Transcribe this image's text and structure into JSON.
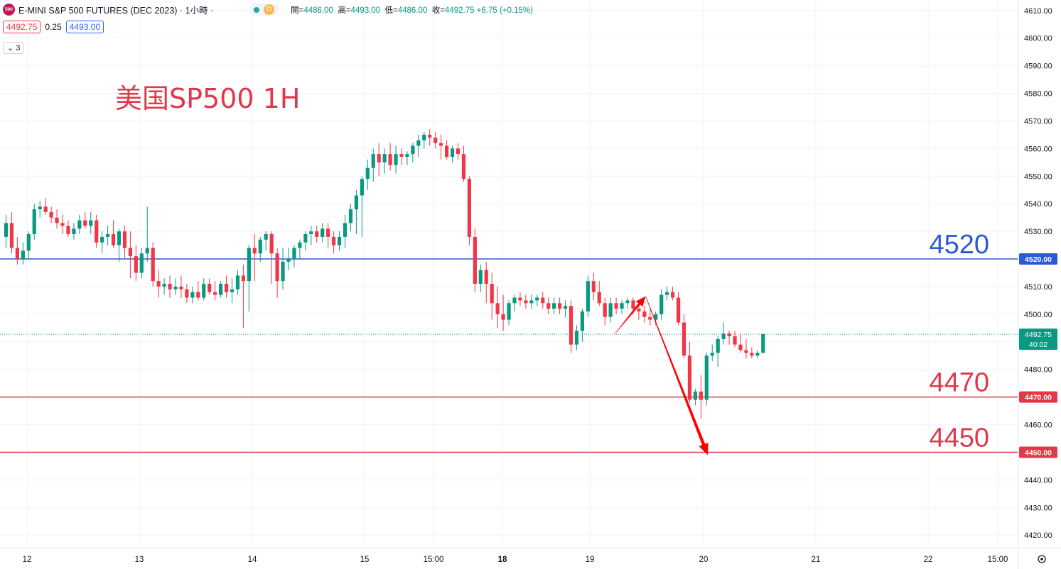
{
  "header": {
    "symbol_badge": "500",
    "symbol_title": "E-MINI S&P 500 FUTURES (DEC 2023) · 1小時 ·",
    "d_badge": "D",
    "ohlc": [
      {
        "label": "開=",
        "value": "4486.00"
      },
      {
        "label": "高=",
        "value": "4493.00"
      },
      {
        "label": "低=",
        "value": "4486.00"
      },
      {
        "label": "收=",
        "value": "4492.75 +6.75 (+0.15%)"
      }
    ],
    "sell_price": "4492.75",
    "spread": "0.25",
    "buy_price": "4493.00",
    "indicator_count": "3"
  },
  "colors": {
    "up": "#089981",
    "down": "#f23645",
    "support": "#e03a4a",
    "resistance": "#2a5bd7",
    "arrow": "#ff0000",
    "watermark": "#e0384b"
  },
  "chart_data": {
    "type": "candlestick",
    "title": "美国SP500 1H",
    "ylim": [
      4418,
      4612
    ],
    "y_ticks": [
      "4610.00",
      "4600.00",
      "4590.00",
      "4580.00",
      "4570.00",
      "4560.00",
      "4550.00",
      "4540.00",
      "4530.00",
      "4520.00",
      "4510.00",
      "4500.00",
      "4490.00",
      "4480.00",
      "4470.00",
      "4460.00",
      "4450.00",
      "4440.00",
      "4430.00",
      "4420.00"
    ],
    "x_labels": [
      "12",
      "13",
      "14",
      "15",
      "15:00",
      "18",
      "19",
      "20",
      "21",
      "22",
      "15:00"
    ],
    "last_price": "4492.75",
    "countdown": "40:02",
    "levels": [
      {
        "value": 4520,
        "label": "4520",
        "axis_label": "4520.00",
        "kind": "resistance"
      },
      {
        "value": 4470,
        "label": "4470",
        "axis_label": "4470.00",
        "kind": "support"
      },
      {
        "value": 4450,
        "label": "4450",
        "axis_label": "4450.00",
        "kind": "support"
      }
    ],
    "projection": [
      {
        "t": 107.7,
        "price": 4492.75
      },
      {
        "t": 113.2,
        "price": 4506.5
      },
      {
        "t": 124.2,
        "price": 4449
      }
    ],
    "candles": [
      [
        4528,
        4536,
        4524,
        4533
      ],
      [
        4533,
        4537,
        4522,
        4524
      ],
      [
        4524,
        4528,
        4518,
        4520
      ],
      [
        4520,
        4526,
        4518,
        4523
      ],
      [
        4523,
        4530,
        4520,
        4529
      ],
      [
        4529,
        4540,
        4527,
        4538
      ],
      [
        4538,
        4541,
        4535,
        4539
      ],
      [
        4539,
        4542,
        4536,
        4537
      ],
      [
        4537,
        4539,
        4533,
        4535
      ],
      [
        4535,
        4538,
        4531,
        4533
      ],
      [
        4533,
        4536,
        4529,
        4532
      ],
      [
        4532,
        4534,
        4528,
        4529
      ],
      [
        4529,
        4533,
        4527,
        4531
      ],
      [
        4531,
        4536,
        4529,
        4534
      ],
      [
        4534,
        4537,
        4531,
        4532
      ],
      [
        4532,
        4537,
        4529,
        4534
      ],
      [
        4534,
        4536,
        4524,
        4526
      ],
      [
        4526,
        4530,
        4522,
        4528
      ],
      [
        4528,
        4532,
        4525,
        4529
      ],
      [
        4529,
        4534,
        4524,
        4525
      ],
      [
        4525,
        4531,
        4519,
        4530
      ],
      [
        4530,
        4532,
        4520,
        4524
      ],
      [
        4524,
        4530,
        4513,
        4521
      ],
      [
        4521,
        4525,
        4512,
        4515
      ],
      [
        4515,
        4524,
        4513,
        4522
      ],
      [
        4522,
        4539,
        4519,
        4524
      ],
      [
        4524,
        4526,
        4510,
        4512
      ],
      [
        4512,
        4516,
        4506,
        4510
      ],
      [
        4510,
        4513,
        4507,
        4511
      ],
      [
        4511,
        4514,
        4506,
        4509
      ],
      [
        4509,
        4513,
        4507,
        4510
      ],
      [
        4510,
        4514,
        4506,
        4509
      ],
      [
        4509,
        4511,
        4504,
        4506
      ],
      [
        4506,
        4510,
        4504,
        4508
      ],
      [
        4508,
        4512,
        4505,
        4506
      ],
      [
        4506,
        4513,
        4505,
        4511
      ],
      [
        4511,
        4513,
        4507,
        4508
      ],
      [
        4508,
        4512,
        4505,
        4507
      ],
      [
        4507,
        4512,
        4506,
        4511
      ],
      [
        4511,
        4514,
        4506,
        4508
      ],
      [
        4508,
        4513,
        4504,
        4509
      ],
      [
        4509,
        4516,
        4507,
        4514
      ],
      [
        4514,
        4518,
        4495,
        4512
      ],
      [
        4512,
        4525,
        4501,
        4524
      ],
      [
        4524,
        4529,
        4512,
        4522
      ],
      [
        4522,
        4528,
        4519,
        4527
      ],
      [
        4527,
        4530,
        4523,
        4529
      ],
      [
        4529,
        4530,
        4511,
        4522
      ],
      [
        4522,
        4524,
        4506,
        4512
      ],
      [
        4512,
        4524,
        4509,
        4519
      ],
      [
        4519,
        4524,
        4516,
        4520
      ],
      [
        4520,
        4525,
        4517,
        4524
      ],
      [
        4524,
        4527,
        4520,
        4526
      ],
      [
        4526,
        4530,
        4523,
        4529
      ],
      [
        4529,
        4532,
        4525,
        4530
      ],
      [
        4530,
        4532,
        4526,
        4528
      ],
      [
        4528,
        4533,
        4526,
        4531
      ],
      [
        4531,
        4533,
        4524,
        4528
      ],
      [
        4528,
        4530,
        4522,
        4525
      ],
      [
        4525,
        4530,
        4523,
        4528
      ],
      [
        4528,
        4536,
        4524,
        4533
      ],
      [
        4533,
        4540,
        4530,
        4538
      ],
      [
        4538,
        4545,
        4529,
        4543
      ],
      [
        4543,
        4550,
        4528,
        4549
      ],
      [
        4549,
        4556,
        4545,
        4553
      ],
      [
        4553,
        4560,
        4548,
        4558
      ],
      [
        4558,
        4562,
        4550,
        4555
      ],
      [
        4555,
        4560,
        4551,
        4558
      ],
      [
        4558,
        4562,
        4552,
        4554
      ],
      [
        4554,
        4561,
        4551,
        4558
      ],
      [
        4558,
        4560,
        4554,
        4557
      ],
      [
        4557,
        4559,
        4554,
        4558
      ],
      [
        4558,
        4562,
        4555,
        4561
      ],
      [
        4561,
        4565,
        4557,
        4563
      ],
      [
        4563,
        4566,
        4560,
        4565
      ],
      [
        4565,
        4567,
        4561,
        4564
      ],
      [
        4564,
        4566,
        4560,
        4562
      ],
      [
        4562,
        4565,
        4556,
        4561
      ],
      [
        4561,
        4563,
        4556,
        4557
      ],
      [
        4557,
        4561,
        4555,
        4560
      ],
      [
        4560,
        4562,
        4556,
        4558
      ],
      [
        4558,
        4561,
        4548,
        4549
      ],
      [
        4549,
        4550,
        4525,
        4528
      ],
      [
        4528,
        4531,
        4508,
        4511
      ],
      [
        4511,
        4518,
        4508,
        4516
      ],
      [
        4516,
        4519,
        4504,
        4511
      ],
      [
        4511,
        4515,
        4498,
        4504
      ],
      [
        4504,
        4510,
        4495,
        4500
      ],
      [
        4500,
        4507,
        4494,
        4498
      ],
      [
        4498,
        4505,
        4496,
        4504
      ],
      [
        4504,
        4507,
        4501,
        4506
      ],
      [
        4506,
        4508,
        4503,
        4505
      ],
      [
        4505,
        4507,
        4502,
        4504
      ],
      [
        4504,
        4507,
        4502,
        4505
      ],
      [
        4505,
        4507,
        4503,
        4506
      ],
      [
        4506,
        4508,
        4502,
        4504
      ],
      [
        4504,
        4506,
        4500,
        4502
      ],
      [
        4502,
        4506,
        4500,
        4504
      ],
      [
        4504,
        4506,
        4500,
        4502
      ],
      [
        4502,
        4505,
        4499,
        4503
      ],
      [
        4503,
        4505,
        4486,
        4489
      ],
      [
        4489,
        4496,
        4487,
        4494
      ],
      [
        4494,
        4502,
        4490,
        4501
      ],
      [
        4501,
        4514,
        4499,
        4512
      ],
      [
        4512,
        4515,
        4505,
        4508
      ],
      [
        4508,
        4512,
        4503,
        4504
      ],
      [
        4504,
        4506,
        4496,
        4499
      ],
      [
        4499,
        4506,
        4497,
        4504
      ],
      [
        4504,
        4506,
        4500,
        4502
      ],
      [
        4502,
        4505,
        4500,
        4504
      ],
      [
        4504,
        4506,
        4502,
        4505
      ],
      [
        4505,
        4506,
        4500,
        4502
      ],
      [
        4502,
        4504,
        4498,
        4501
      ],
      [
        4501,
        4503,
        4497,
        4499
      ],
      [
        4499,
        4502,
        4496,
        4498
      ],
      [
        4498,
        4501,
        4496,
        4500
      ],
      [
        4500,
        4509,
        4498,
        4507
      ],
      [
        4507,
        4510,
        4505,
        4508
      ],
      [
        4508,
        4510,
        4505,
        4506
      ],
      [
        4506,
        4508,
        4496,
        4497
      ],
      [
        4497,
        4500,
        4484,
        4485
      ],
      [
        4485,
        4490,
        4468,
        4469
      ],
      [
        4469,
        4473,
        4467,
        4472
      ],
      [
        4472,
        4478,
        4462,
        4469
      ],
      [
        4469,
        4486,
        4467,
        4485
      ],
      [
        4485,
        4489,
        4483,
        4486
      ],
      [
        4486,
        4492,
        4481,
        4491
      ],
      [
        4491,
        4497,
        4489,
        4493
      ],
      [
        4493,
        4494,
        4489,
        4492
      ],
      [
        4492,
        4494,
        4488,
        4489
      ],
      [
        4489,
        4493,
        4486,
        4487
      ],
      [
        4487,
        4491,
        4484,
        4486
      ],
      [
        4486,
        4488,
        4484,
        4485
      ],
      [
        4485,
        4487,
        4484,
        4486
      ],
      [
        4486,
        4493,
        4486,
        4492.75
      ]
    ]
  }
}
